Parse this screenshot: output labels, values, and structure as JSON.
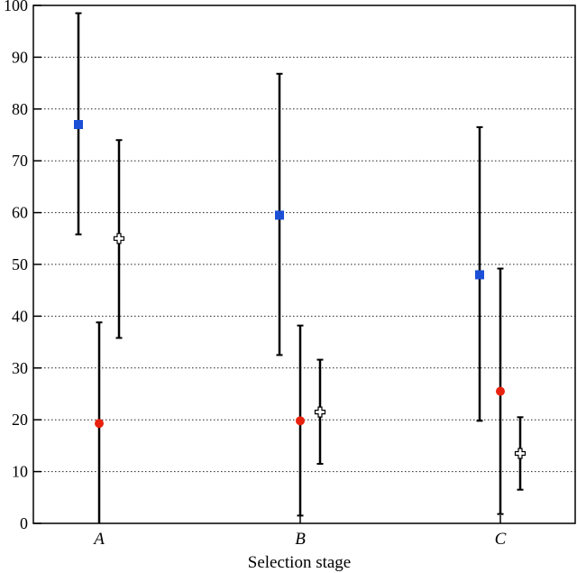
{
  "chart_data": {
    "type": "scatter",
    "title": "",
    "xlabel": "Selection stage",
    "ylabel": "",
    "categories": [
      "A",
      "B",
      "C"
    ],
    "ylim": [
      0,
      100
    ],
    "yticks": [
      0,
      10,
      20,
      30,
      40,
      50,
      60,
      70,
      80,
      90,
      100
    ],
    "grid": {
      "horizontal": true,
      "style": "dotted"
    },
    "legend": "none",
    "series": [
      {
        "marker": "square",
        "color": "#1a4fd6",
        "values": [
          77,
          59.5,
          48
        ],
        "err_low": [
          55.8,
          32.5,
          19.8
        ],
        "err_high": [
          98.5,
          86.8,
          76.5
        ]
      },
      {
        "marker": "circle",
        "color": "#e8220e",
        "values": [
          19.3,
          19.8,
          25.5
        ],
        "err_low": [
          0,
          1.5,
          1.8
        ],
        "err_high": [
          38.8,
          38.2,
          49.2
        ]
      },
      {
        "marker": "cross",
        "color": "#ffffff",
        "values": [
          55,
          21.5,
          13.5
        ],
        "err_low": [
          35.8,
          11.5,
          6.5
        ],
        "err_high": [
          74,
          31.6,
          20.5
        ]
      }
    ]
  }
}
